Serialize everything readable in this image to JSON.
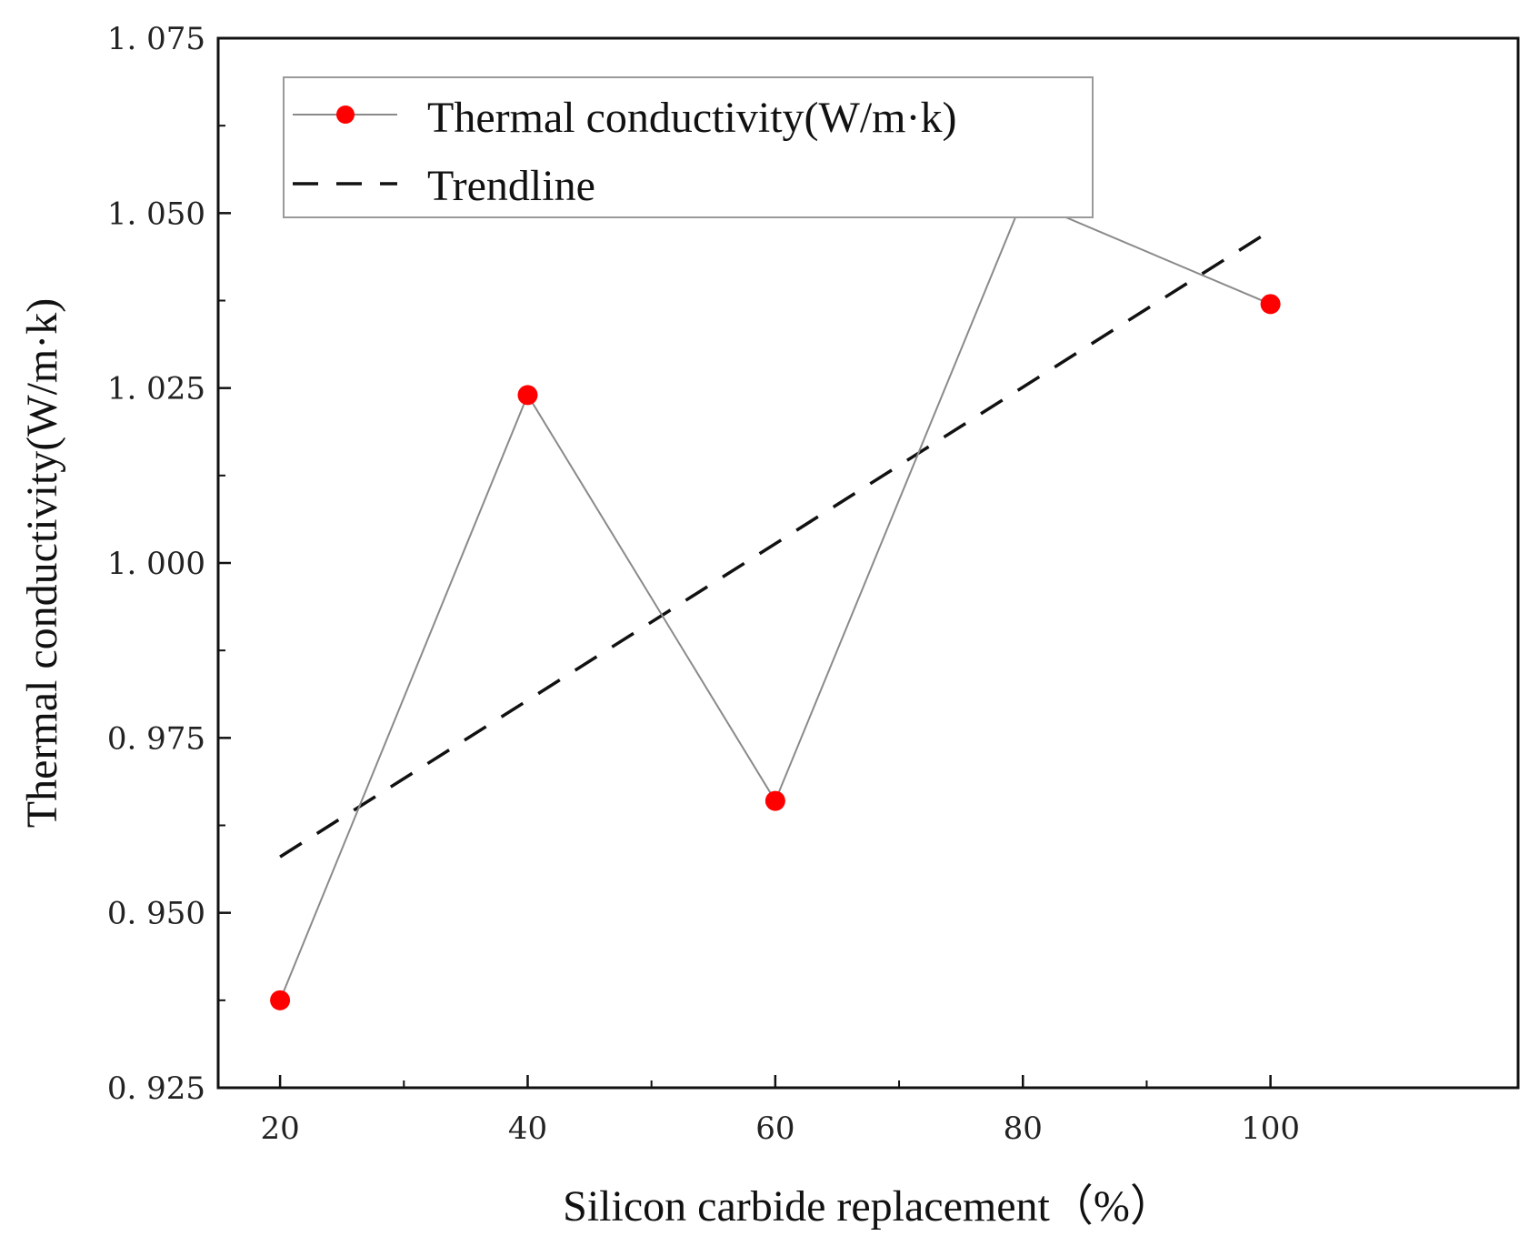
{
  "chart_data": {
    "type": "line",
    "title": "",
    "xlabel": "Silicon carbide replacement（%）",
    "ylabel": "Thermal conductivity(W/m·k)",
    "xlim": [
      15,
      120
    ],
    "ylim": [
      0.925,
      1.075
    ],
    "x_ticks": [
      "20",
      "40",
      "60",
      "80",
      "100"
    ],
    "y_ticks": [
      "0. 925",
      "0. 950",
      "0. 975",
      "1. 000",
      "1. 025",
      "1. 050",
      "1. 075"
    ],
    "grid": false,
    "legend_position": "top-left",
    "series": [
      {
        "name": "Thermal conductivity(W/m·k)",
        "x": [
          20,
          40,
          60,
          80,
          100
        ],
        "values": [
          0.9375,
          1.024,
          0.966,
          1.052,
          1.037
        ],
        "marker_color": "#ff0000",
        "line_color": "#8a8a8a"
      },
      {
        "name": "Trendline",
        "x": [
          20,
          100
        ],
        "values": [
          0.958,
          1.0475
        ],
        "line_color": "#111111",
        "dashed": true
      }
    ]
  }
}
